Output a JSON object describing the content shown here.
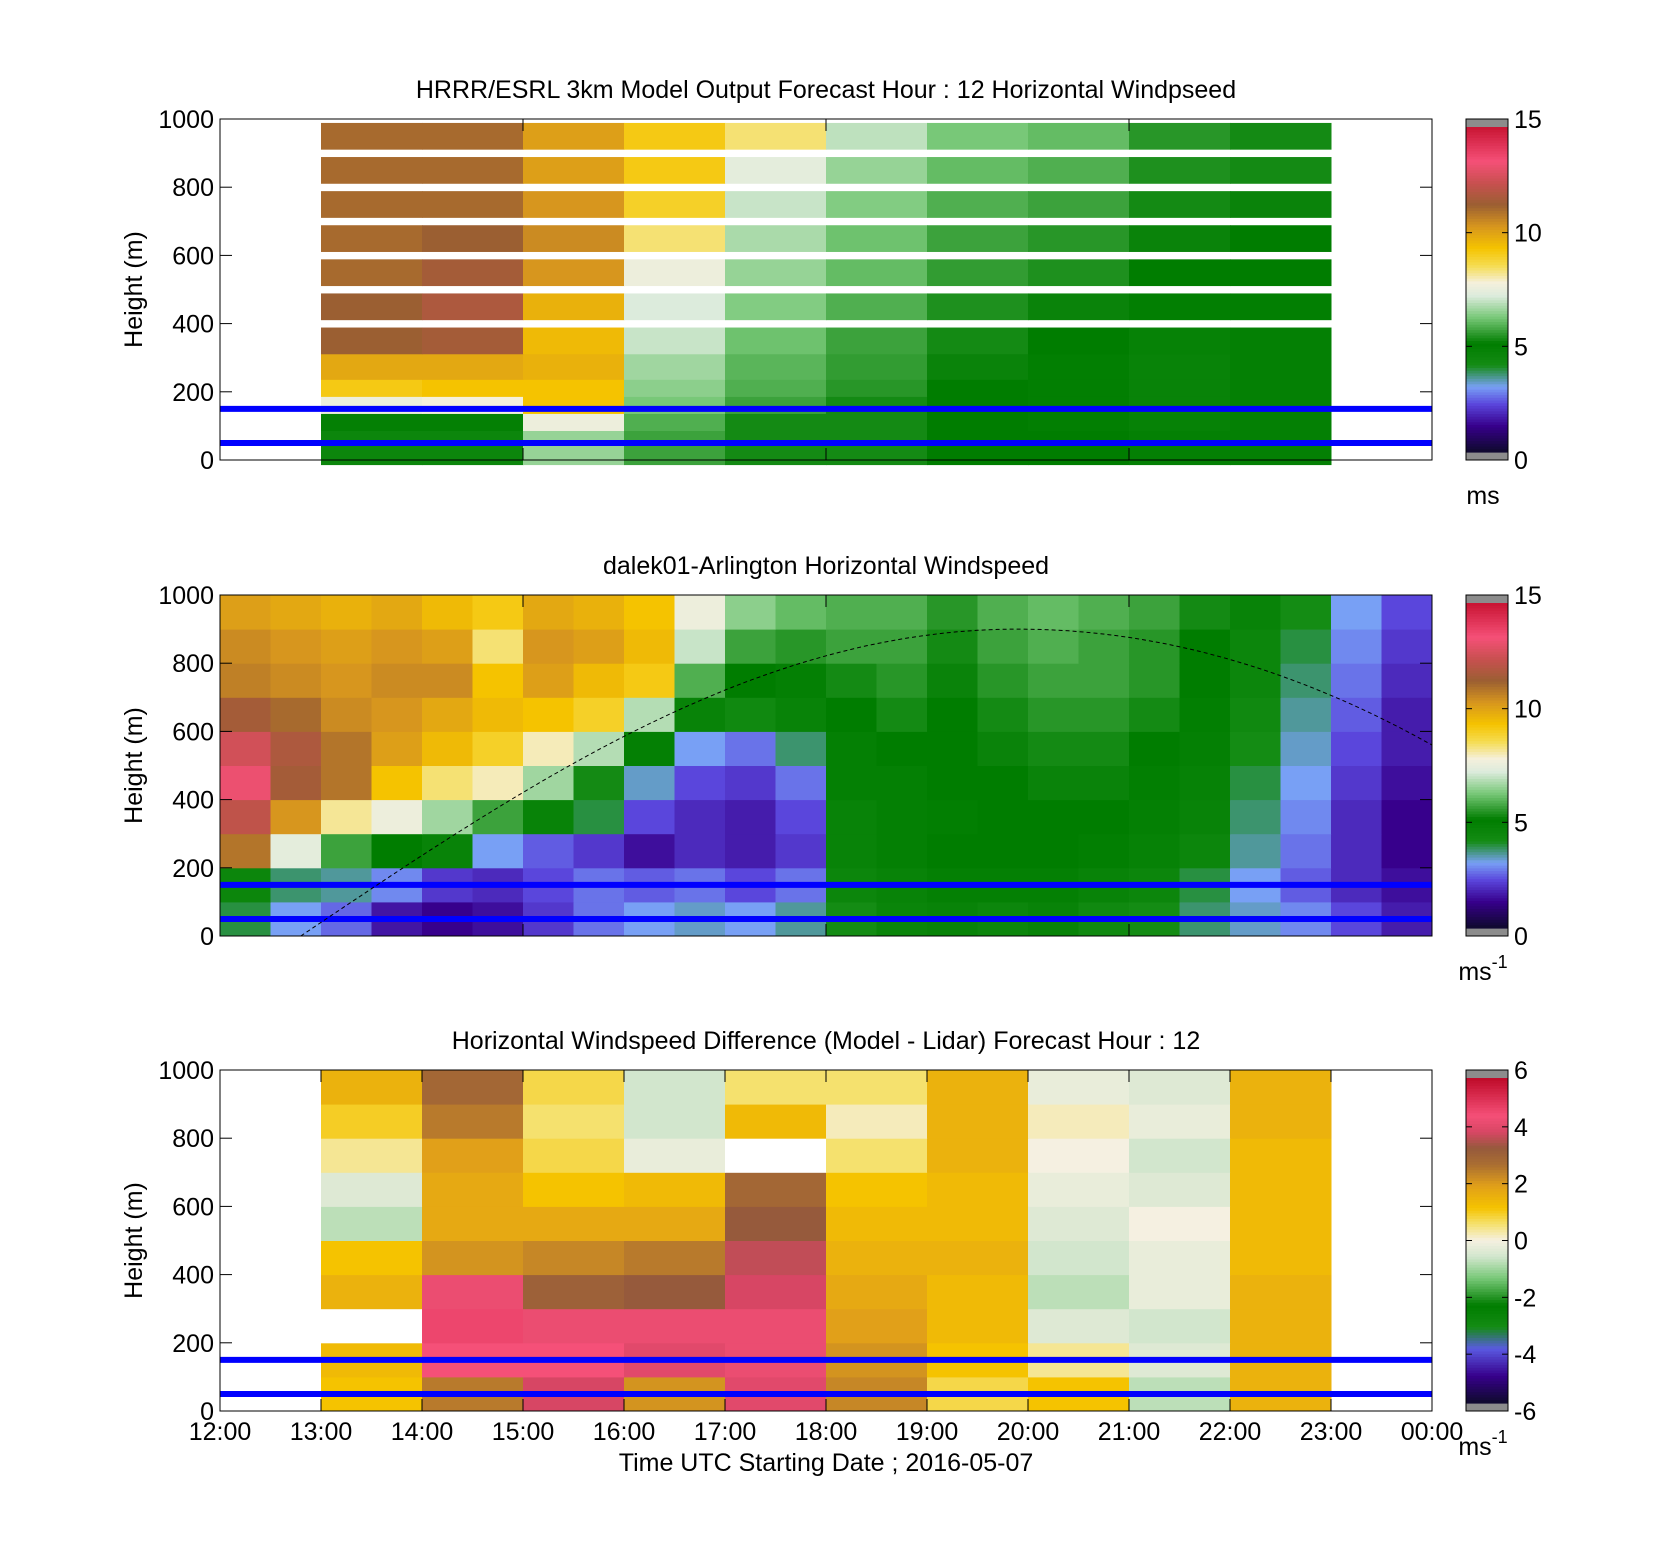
{
  "figure": {
    "panels": [
      {
        "id": "model",
        "title": "HRRR/ESRL 3km Model Output   Forecast Hour : 12 Horizontal Windpseed",
        "ylabel": "Height (m)",
        "yticks": [
          "0",
          "200",
          "400",
          "600",
          "800",
          "1000"
        ],
        "colorbar_ticks": [
          "0",
          "5",
          "10",
          "15"
        ],
        "colorbar_unit": "ms",
        "colorbar_exp": ""
      },
      {
        "id": "lidar",
        "title": "dalek01-Arlington  Horizontal Windspeed",
        "ylabel": "Height (m)",
        "yticks": [
          "0",
          "200",
          "400",
          "600",
          "800",
          "1000"
        ],
        "colorbar_ticks": [
          "0",
          "5",
          "10",
          "15"
        ],
        "colorbar_unit": "ms",
        "colorbar_exp": "-1"
      },
      {
        "id": "diff",
        "title": "Horizontal Windspeed Difference (Model - Lidar) Forecast Hour : 12",
        "ylabel": "Height (m)",
        "yticks": [
          "0",
          "200",
          "400",
          "600",
          "800",
          "1000"
        ],
        "colorbar_ticks": [
          "-6",
          "-4",
          "-2",
          "0",
          "2",
          "4",
          "6"
        ],
        "colorbar_unit": "ms",
        "colorbar_exp": "-1"
      }
    ],
    "xticks": [
      "12:00",
      "13:00",
      "14:00",
      "15:00",
      "16:00",
      "17:00",
      "18:00",
      "19:00",
      "20:00",
      "21:00",
      "22:00",
      "23:00",
      "00:00"
    ],
    "xlabel": "Time UTC  Starting Date ; 2016-05-07",
    "colors": {
      "reference_lines": "#0000ff",
      "invalid_data": "#8c8c8c"
    }
  },
  "chart_data": [
    {
      "type": "heatmap",
      "title": "HRRR/ESRL 3km Model Output   Forecast Hour : 12 Horizontal Windpseed",
      "xlabel": "",
      "ylabel": "Height (m)",
      "x_range": [
        "12:00",
        "00:00"
      ],
      "ylim": [
        0,
        1000
      ],
      "colorbar": {
        "range": [
          0,
          15
        ],
        "unit": "ms"
      },
      "columns": [
        "13:00",
        "14:00",
        "15:00",
        "16:00",
        "17:00",
        "18:00",
        "19:00",
        "20:00",
        "21:00",
        "22:00"
      ],
      "heights": [
        25,
        75,
        125,
        175,
        225,
        275,
        350,
        450,
        550,
        650,
        750,
        850,
        950
      ],
      "values": [
        [
          4.4,
          4.4,
          6.5,
          5.6,
          5.2,
          5.2,
          5.0,
          5.0,
          4.8,
          4.8
        ],
        [
          4.4,
          4.4,
          6.5,
          5.6,
          5.2,
          5.2,
          5.0,
          5.0,
          4.8,
          4.8
        ],
        [
          4.8,
          4.8,
          7.6,
          5.8,
          5.2,
          5.2,
          5.0,
          4.9,
          4.7,
          4.8
        ],
        [
          7.6,
          7.8,
          9.4,
          6.2,
          5.6,
          5.2,
          5.0,
          4.9,
          4.6,
          4.8
        ],
        [
          9.2,
          9.4,
          9.4,
          6.4,
          5.8,
          5.4,
          5.0,
          4.9,
          4.6,
          4.8
        ],
        [
          10.0,
          10.0,
          9.8,
          6.6,
          5.9,
          5.5,
          5.1,
          4.9,
          4.6,
          4.8
        ],
        [
          11.4,
          11.6,
          9.6,
          7.0,
          6.1,
          5.6,
          5.2,
          5.0,
          4.7,
          4.8
        ],
        [
          11.4,
          11.8,
          9.8,
          7.2,
          6.3,
          5.8,
          5.3,
          5.1,
          4.9,
          4.9
        ],
        [
          11.2,
          11.6,
          10.4,
          7.6,
          6.5,
          6.0,
          5.5,
          5.3,
          5.0,
          5.0
        ],
        [
          11.2,
          11.4,
          10.6,
          8.4,
          6.7,
          6.1,
          5.6,
          5.4,
          5.1,
          5.0
        ],
        [
          11.2,
          11.2,
          10.4,
          9.0,
          7.0,
          6.3,
          5.8,
          5.6,
          5.2,
          5.1
        ],
        [
          11.2,
          11.2,
          10.2,
          9.2,
          7.4,
          6.5,
          6.0,
          5.8,
          5.3,
          5.2
        ],
        [
          11.2,
          11.2,
          10.2,
          9.2,
          8.4,
          6.9,
          6.2,
          6.0,
          5.4,
          5.2
        ]
      ]
    },
    {
      "type": "heatmap",
      "title": "dalek01-Arlington  Horizontal Windspeed",
      "xlabel": "",
      "ylabel": "Height (m)",
      "x_range": [
        "12:00",
        "00:00"
      ],
      "ylim": [
        0,
        1000
      ],
      "colorbar": {
        "range": [
          0,
          15
        ],
        "unit": "ms-1"
      },
      "columns": [
        "12:00",
        "12:30",
        "13:00",
        "13:30",
        "14:00",
        "14:30",
        "15:00",
        "15:30",
        "16:00",
        "16:30",
        "17:00",
        "17:30",
        "18:00",
        "18:30",
        "19:00",
        "19:30",
        "20:00",
        "20:30",
        "21:00",
        "21:30",
        "22:00",
        "22:30",
        "23:00",
        "23:30"
      ],
      "heights": [
        50,
        150,
        250,
        350,
        450,
        550,
        650,
        750,
        850,
        950
      ],
      "values": [
        [
          3.8,
          3.0,
          2.5,
          1.5,
          1.2,
          1.4,
          2.0,
          2.6,
          3.0,
          3.2,
          3.0,
          3.4,
          4.0,
          4.5,
          4.6,
          4.4,
          4.6,
          4.2,
          4.0,
          3.6,
          3.2,
          2.8,
          2.2,
          1.6
        ],
        [
          4.4,
          3.6,
          3.4,
          2.8,
          2.0,
          1.8,
          2.2,
          2.6,
          2.4,
          2.6,
          2.2,
          2.6,
          4.4,
          4.6,
          4.8,
          4.8,
          4.8,
          4.6,
          4.4,
          3.8,
          3.0,
          2.4,
          1.8,
          1.4
        ],
        [
          11.0,
          7.4,
          5.6,
          5.0,
          4.6,
          3.0,
          2.4,
          2.0,
          1.4,
          1.8,
          1.6,
          2.0,
          4.6,
          4.8,
          5.0,
          5.0,
          5.0,
          4.9,
          4.7,
          4.4,
          3.4,
          2.6,
          1.8,
          1.2
        ],
        [
          12.2,
          10.4,
          8.2,
          7.6,
          6.6,
          5.6,
          4.6,
          3.8,
          2.2,
          1.8,
          1.6,
          2.2,
          4.6,
          4.8,
          4.9,
          5.0,
          5.0,
          5.0,
          4.8,
          4.6,
          3.6,
          2.8,
          1.8,
          1.2
        ],
        [
          13.2,
          11.6,
          11.0,
          9.4,
          8.4,
          8.0,
          6.6,
          5.2,
          3.2,
          2.2,
          2.0,
          2.6,
          4.8,
          4.8,
          5.0,
          5.0,
          5.1,
          5.1,
          4.9,
          4.7,
          3.8,
          3.0,
          2.0,
          1.4
        ],
        [
          12.6,
          11.8,
          11.0,
          10.2,
          9.6,
          9.0,
          8.0,
          6.8,
          4.8,
          3.0,
          2.6,
          3.6,
          4.8,
          5.0,
          5.0,
          5.1,
          5.2,
          5.2,
          5.0,
          4.8,
          4.0,
          3.2,
          2.2,
          1.6
        ],
        [
          11.6,
          11.2,
          10.6,
          10.4,
          10.0,
          9.6,
          9.4,
          9.0,
          6.8,
          4.6,
          4.2,
          4.6,
          5.0,
          5.2,
          5.0,
          5.2,
          5.4,
          5.4,
          5.2,
          4.9,
          4.2,
          3.4,
          2.4,
          1.6
        ],
        [
          10.8,
          10.6,
          10.4,
          10.6,
          10.6,
          9.4,
          10.2,
          9.6,
          9.2,
          5.8,
          5.0,
          4.8,
          5.2,
          5.4,
          5.1,
          5.4,
          5.6,
          5.6,
          5.4,
          5.0,
          4.4,
          3.6,
          2.6,
          1.8
        ],
        [
          10.6,
          10.4,
          10.2,
          10.4,
          10.2,
          8.4,
          10.4,
          10.2,
          9.6,
          7.0,
          5.6,
          5.4,
          5.6,
          5.6,
          5.2,
          5.6,
          5.8,
          5.6,
          5.4,
          5.0,
          4.4,
          3.8,
          2.8,
          2.0
        ],
        [
          10.2,
          10.0,
          9.8,
          10.0,
          9.6,
          9.2,
          10.0,
          9.8,
          9.4,
          7.6,
          6.4,
          6.0,
          5.8,
          5.8,
          5.4,
          5.8,
          6.0,
          5.8,
          5.6,
          5.2,
          4.6,
          4.0,
          3.0,
          2.2
        ]
      ],
      "annotations": [
        "dashed curve rising from 13:00 near 0 m to about 900 m near 20:00, then falling to about 560 m at 00:00"
      ]
    },
    {
      "type": "heatmap",
      "title": "Horizontal Windspeed Difference (Model - Lidar) Forecast Hour : 12",
      "xlabel": "Time UTC  Starting Date ; 2016-05-07",
      "ylabel": "Height (m)",
      "x_range": [
        "12:00",
        "00:00"
      ],
      "ylim": [
        0,
        1000
      ],
      "colorbar": {
        "range": [
          -6,
          6
        ],
        "unit": "ms-1"
      },
      "columns": [
        "13:00",
        "14:00",
        "15:00",
        "16:00",
        "17:00",
        "18:00",
        "19:00",
        "20:00",
        "21:00",
        "22:00"
      ],
      "heights": [
        50,
        150,
        250,
        350,
        450,
        550,
        650,
        750,
        850,
        950
      ],
      "values": [
        [
          1.2,
          2.6,
          4.0,
          2.2,
          4.2,
          2.4,
          0.8,
          1.2,
          -0.8,
          1.6
        ],
        [
          1.4,
          4.6,
          4.6,
          4.2,
          4.4,
          2.2,
          1.2,
          0.4,
          -0.4,
          1.6
        ],
        [
          null,
          4.8,
          4.4,
          4.4,
          4.4,
          2.0,
          1.4,
          -0.4,
          -0.6,
          1.6
        ],
        [
          1.6,
          4.4,
          3.2,
          3.4,
          4.0,
          1.8,
          1.4,
          -0.8,
          -0.2,
          1.6
        ],
        [
          1.2,
          2.2,
          2.4,
          2.6,
          3.8,
          1.6,
          1.6,
          -0.6,
          -0.2,
          1.4
        ],
        [
          -0.8,
          1.8,
          1.8,
          1.8,
          3.4,
          1.4,
          1.4,
          -0.4,
          0.0,
          1.4
        ],
        [
          -0.4,
          1.8,
          1.2,
          1.4,
          3.0,
          1.2,
          1.4,
          -0.2,
          -0.4,
          1.4
        ],
        [
          0.4,
          2.0,
          0.8,
          -0.2,
          null,
          0.6,
          1.6,
          0.0,
          -0.6,
          1.4
        ],
        [
          1.0,
          2.6,
          0.6,
          -0.6,
          1.4,
          0.2,
          1.6,
          0.2,
          -0.2,
          1.6
        ],
        [
          1.6,
          3.0,
          0.8,
          -0.6,
          0.6,
          0.6,
          1.6,
          -0.2,
          -0.4,
          1.6
        ]
      ]
    }
  ]
}
